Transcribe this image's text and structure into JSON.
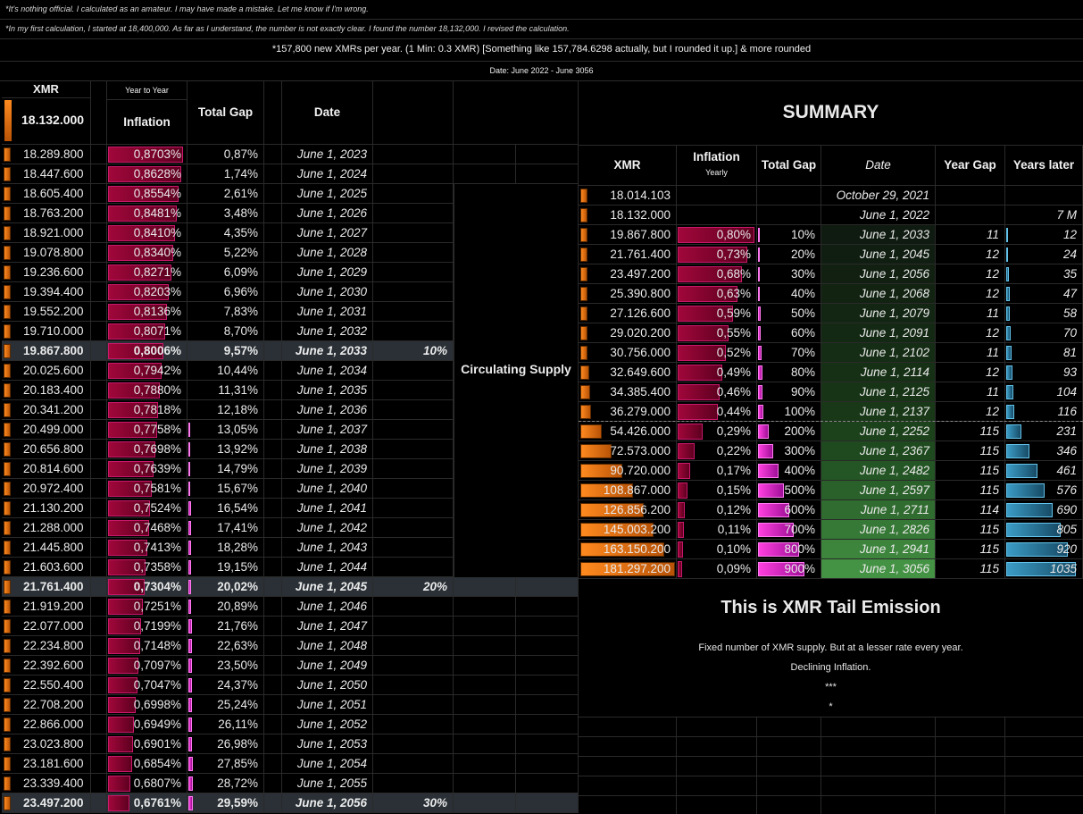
{
  "notes": {
    "line1": "*It's nothing official. I calculated as an amateur. I may have made a mistake. Let me know if I'm wrong.",
    "line2": "*In my first calculation, I started at 18,400,000. As far as I understand, the number is not exactly clear. I found the number 18,132,000. I revised the calculation.",
    "line3": "*157,800 new XMRs per year. (1 Min: 0.3 XMR) [Something like 157,784.6298 actually, but I rounded it up.] & more rounded",
    "date_range": "Date: June 2022 - June 3056"
  },
  "left": {
    "headers": {
      "xmr": "XMR",
      "year_to_year": "Year to Year",
      "inflation": "Inflation",
      "total_gap": "Total Gap",
      "date": "Date"
    },
    "start_value": "18.132.000",
    "circulating_label": "Circulating Supply",
    "rows": [
      {
        "xmr": "18.289.800",
        "infl": "0,8703%",
        "gap": "0,87%",
        "date": "June 1, 2023",
        "mark": ""
      },
      {
        "xmr": "18.447.600",
        "infl": "0,8628%",
        "gap": "1,74%",
        "date": "June 1, 2024",
        "mark": ""
      },
      {
        "xmr": "18.605.400",
        "infl": "0,8554%",
        "gap": "2,61%",
        "date": "June 1, 2025",
        "mark": ""
      },
      {
        "xmr": "18.763.200",
        "infl": "0,8481%",
        "gap": "3,48%",
        "date": "June 1, 2026",
        "mark": ""
      },
      {
        "xmr": "18.921.000",
        "infl": "0,8410%",
        "gap": "4,35%",
        "date": "June 1, 2027",
        "mark": ""
      },
      {
        "xmr": "19.078.800",
        "infl": "0,8340%",
        "gap": "5,22%",
        "date": "June 1, 2028",
        "mark": ""
      },
      {
        "xmr": "19.236.600",
        "infl": "0,8271%",
        "gap": "6,09%",
        "date": "June 1, 2029",
        "mark": ""
      },
      {
        "xmr": "19.394.400",
        "infl": "0,8203%",
        "gap": "6,96%",
        "date": "June 1, 2030",
        "mark": ""
      },
      {
        "xmr": "19.552.200",
        "infl": "0,8136%",
        "gap": "7,83%",
        "date": "June 1, 2031",
        "mark": ""
      },
      {
        "xmr": "19.710.000",
        "infl": "0,8071%",
        "gap": "8,70%",
        "date": "June 1, 2032",
        "mark": ""
      },
      {
        "xmr": "19.867.800",
        "infl": "0,8006%",
        "gap": "9,57%",
        "date": "June 1, 2033",
        "mark": "10%"
      },
      {
        "xmr": "20.025.600",
        "infl": "0,7942%",
        "gap": "10,44%",
        "date": "June 1, 2034",
        "mark": ""
      },
      {
        "xmr": "20.183.400",
        "infl": "0,7880%",
        "gap": "11,31%",
        "date": "June 1, 2035",
        "mark": ""
      },
      {
        "xmr": "20.341.200",
        "infl": "0,7818%",
        "gap": "12,18%",
        "date": "June 1, 2036",
        "mark": ""
      },
      {
        "xmr": "20.499.000",
        "infl": "0,7758%",
        "gap": "13,05%",
        "date": "June 1, 2037",
        "mark": ""
      },
      {
        "xmr": "20.656.800",
        "infl": "0,7698%",
        "gap": "13,92%",
        "date": "June 1, 2038",
        "mark": ""
      },
      {
        "xmr": "20.814.600",
        "infl": "0,7639%",
        "gap": "14,79%",
        "date": "June 1, 2039",
        "mark": ""
      },
      {
        "xmr": "20.972.400",
        "infl": "0,7581%",
        "gap": "15,67%",
        "date": "June 1, 2040",
        "mark": ""
      },
      {
        "xmr": "21.130.200",
        "infl": "0,7524%",
        "gap": "16,54%",
        "date": "June 1, 2041",
        "mark": ""
      },
      {
        "xmr": "21.288.000",
        "infl": "0,7468%",
        "gap": "17,41%",
        "date": "June 1, 2042",
        "mark": ""
      },
      {
        "xmr": "21.445.800",
        "infl": "0,7413%",
        "gap": "18,28%",
        "date": "June 1, 2043",
        "mark": ""
      },
      {
        "xmr": "21.603.600",
        "infl": "0,7358%",
        "gap": "19,15%",
        "date": "June 1, 2044",
        "mark": ""
      },
      {
        "xmr": "21.761.400",
        "infl": "0,7304%",
        "gap": "20,02%",
        "date": "June 1, 2045",
        "mark": "20%"
      },
      {
        "xmr": "21.919.200",
        "infl": "0,7251%",
        "gap": "20,89%",
        "date": "June 1, 2046",
        "mark": ""
      },
      {
        "xmr": "22.077.000",
        "infl": "0,7199%",
        "gap": "21,76%",
        "date": "June 1, 2047",
        "mark": ""
      },
      {
        "xmr": "22.234.800",
        "infl": "0,7148%",
        "gap": "22,63%",
        "date": "June 1, 2048",
        "mark": ""
      },
      {
        "xmr": "22.392.600",
        "infl": "0,7097%",
        "gap": "23,50%",
        "date": "June 1, 2049",
        "mark": ""
      },
      {
        "xmr": "22.550.400",
        "infl": "0,7047%",
        "gap": "24,37%",
        "date": "June 1, 2050",
        "mark": ""
      },
      {
        "xmr": "22.708.200",
        "infl": "0,6998%",
        "gap": "25,24%",
        "date": "June 1, 2051",
        "mark": ""
      },
      {
        "xmr": "22.866.000",
        "infl": "0,6949%",
        "gap": "26,11%",
        "date": "June 1, 2052",
        "mark": ""
      },
      {
        "xmr": "23.023.800",
        "infl": "0,6901%",
        "gap": "26,98%",
        "date": "June 1, 2053",
        "mark": ""
      },
      {
        "xmr": "23.181.600",
        "infl": "0,6854%",
        "gap": "27,85%",
        "date": "June 1, 2054",
        "mark": ""
      },
      {
        "xmr": "23.339.400",
        "infl": "0,6807%",
        "gap": "28,72%",
        "date": "June 1, 2055",
        "mark": ""
      },
      {
        "xmr": "23.497.200",
        "infl": "0,6761%",
        "gap": "29,59%",
        "date": "June 1, 2056",
        "mark": "30%"
      }
    ]
  },
  "summary": {
    "title": "SUMMARY",
    "headers": {
      "xmr": "XMR",
      "inflation": "Inflation",
      "yearly": "Yearly",
      "total_gap": "Total Gap",
      "date": "Date",
      "year_gap": "Year Gap",
      "years_later": "Years later"
    },
    "rows": [
      {
        "xmr": "18.014.103",
        "infl": "",
        "infl_v": 0,
        "gap": "",
        "gap_v": 0,
        "date": "October 29, 2021",
        "yg": "",
        "yl": "",
        "yl_v": 0
      },
      {
        "xmr": "18.132.000",
        "infl": "",
        "infl_v": 0,
        "gap": "",
        "gap_v": 0,
        "date": "June 1, 2022",
        "yg": "",
        "yl": "7 M",
        "yl_v": 0
      },
      {
        "xmr": "19.867.800",
        "infl": "0,80%",
        "infl_v": 0.8,
        "gap": "10%",
        "gap_v": 10,
        "date": "June 1, 2033",
        "yg": "11",
        "yl": "12",
        "yl_v": 12
      },
      {
        "xmr": "21.761.400",
        "infl": "0,73%",
        "infl_v": 0.73,
        "gap": "20%",
        "gap_v": 20,
        "date": "June 1, 2045",
        "yg": "12",
        "yl": "24",
        "yl_v": 24
      },
      {
        "xmr": "23.497.200",
        "infl": "0,68%",
        "infl_v": 0.68,
        "gap": "30%",
        "gap_v": 30,
        "date": "June 1, 2056",
        "yg": "12",
        "yl": "35",
        "yl_v": 35
      },
      {
        "xmr": "25.390.800",
        "infl": "0,63%",
        "infl_v": 0.63,
        "gap": "40%",
        "gap_v": 40,
        "date": "June 1, 2068",
        "yg": "12",
        "yl": "47",
        "yl_v": 47
      },
      {
        "xmr": "27.126.600",
        "infl": "0,59%",
        "infl_v": 0.59,
        "gap": "50%",
        "gap_v": 50,
        "date": "June 1, 2079",
        "yg": "11",
        "yl": "58",
        "yl_v": 58
      },
      {
        "xmr": "29.020.200",
        "infl": "0,55%",
        "infl_v": 0.55,
        "gap": "60%",
        "gap_v": 60,
        "date": "June 1, 2091",
        "yg": "12",
        "yl": "70",
        "yl_v": 70
      },
      {
        "xmr": "30.756.000",
        "infl": "0,52%",
        "infl_v": 0.52,
        "gap": "70%",
        "gap_v": 70,
        "date": "June 1, 2102",
        "yg": "11",
        "yl": "81",
        "yl_v": 81
      },
      {
        "xmr": "32.649.600",
        "infl": "0,49%",
        "infl_v": 0.49,
        "gap": "80%",
        "gap_v": 80,
        "date": "June 1, 2114",
        "yg": "12",
        "yl": "93",
        "yl_v": 93
      },
      {
        "xmr": "34.385.400",
        "infl": "0,46%",
        "infl_v": 0.46,
        "gap": "90%",
        "gap_v": 90,
        "date": "June 1, 2125",
        "yg": "11",
        "yl": "104",
        "yl_v": 104
      },
      {
        "xmr": "36.279.000",
        "infl": "0,44%",
        "infl_v": 0.44,
        "gap": "100%",
        "gap_v": 100,
        "date": "June 1, 2137",
        "yg": "12",
        "yl": "116",
        "yl_v": 116
      },
      {
        "xmr": "54.426.000",
        "infl": "0,29%",
        "infl_v": 0.29,
        "gap": "200%",
        "gap_v": 200,
        "date": "June 1, 2252",
        "yg": "115",
        "yl": "231",
        "yl_v": 231
      },
      {
        "xmr": "72.573.000",
        "infl": "0,22%",
        "infl_v": 0.22,
        "gap": "300%",
        "gap_v": 300,
        "date": "June 1, 2367",
        "yg": "115",
        "yl": "346",
        "yl_v": 346
      },
      {
        "xmr": "90.720.000",
        "infl": "0,17%",
        "infl_v": 0.17,
        "gap": "400%",
        "gap_v": 400,
        "date": "June 1, 2482",
        "yg": "115",
        "yl": "461",
        "yl_v": 461
      },
      {
        "xmr": "108.867.000",
        "infl": "0,15%",
        "infl_v": 0.15,
        "gap": "500%",
        "gap_v": 500,
        "date": "June 1, 2597",
        "yg": "115",
        "yl": "576",
        "yl_v": 576
      },
      {
        "xmr": "126.856.200",
        "infl": "0,12%",
        "infl_v": 0.12,
        "gap": "600%",
        "gap_v": 600,
        "date": "June 1, 2711",
        "yg": "114",
        "yl": "690",
        "yl_v": 690
      },
      {
        "xmr": "145.003.200",
        "infl": "0,11%",
        "infl_v": 0.11,
        "gap": "700%",
        "gap_v": 700,
        "date": "June 1, 2826",
        "yg": "115",
        "yl": "805",
        "yl_v": 805
      },
      {
        "xmr": "163.150.200",
        "infl": "0,10%",
        "infl_v": 0.1,
        "gap": "800%",
        "gap_v": 800,
        "date": "June 1, 2941",
        "yg": "115",
        "yl": "920",
        "yl_v": 920
      },
      {
        "xmr": "181.297.200",
        "infl": "0,09%",
        "infl_v": 0.09,
        "gap": "900%",
        "gap_v": 900,
        "date": "June 1, 3056",
        "yg": "115",
        "yl": "1035",
        "yl_v": 1035
      }
    ],
    "tail_title": "This is XMR Tail Emission",
    "tail_line1": "Fixed number of XMR supply. But at a lesser rate every year.",
    "tail_line2": "Declining Inflation.",
    "tail_line3": "***",
    "tail_line4": "*"
  },
  "colors": {
    "orange": "#e06a0c",
    "crimson": "#8a0b34",
    "magenta": "#e02fd0",
    "blue": "#2f86ad",
    "green": "#3f9a3f",
    "milestone": "#2a3036"
  }
}
